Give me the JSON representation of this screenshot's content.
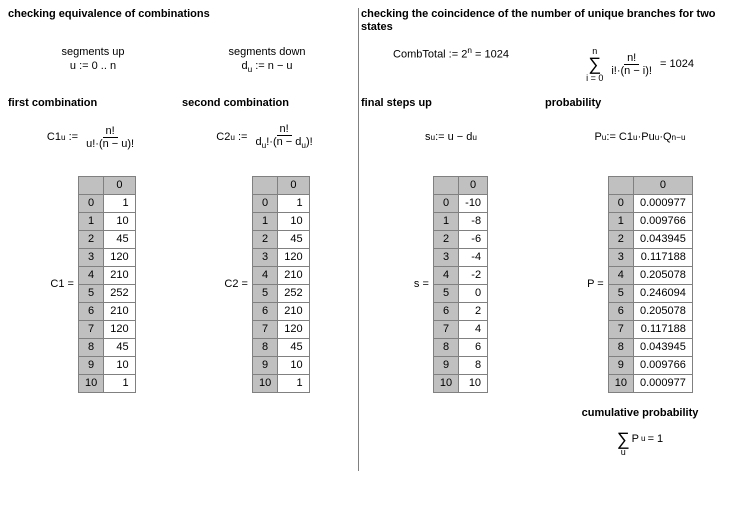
{
  "layout": {
    "headingLeft": "checking equivalence of combinations",
    "headingRight": "checking the coincidence of the number of unique branches for two states"
  },
  "col1": {
    "sub1": "segments up",
    "sub1formula": "u := 0 .. n",
    "sub2": "first combination",
    "formulaLabel": "C1",
    "formulaSub": "u",
    "formulaNum": "n!",
    "formulaDen": "u!·(n − u)!",
    "tableLabel": "C1 =",
    "header": "0",
    "rows": [
      {
        "i": "0",
        "v": "1"
      },
      {
        "i": "1",
        "v": "10"
      },
      {
        "i": "2",
        "v": "45"
      },
      {
        "i": "3",
        "v": "120"
      },
      {
        "i": "4",
        "v": "210"
      },
      {
        "i": "5",
        "v": "252"
      },
      {
        "i": "6",
        "v": "210"
      },
      {
        "i": "7",
        "v": "120"
      },
      {
        "i": "8",
        "v": "45"
      },
      {
        "i": "9",
        "v": "10"
      },
      {
        "i": "10",
        "v": "1"
      }
    ]
  },
  "col2": {
    "sub1": "segments down",
    "sub1formulaLeft": "d",
    "sub1formulaSub": "u",
    "sub1formulaRight": " := n − u",
    "sub2": "second combination",
    "formulaLabel": "C2",
    "formulaSub": "u",
    "formulaNum": "n!",
    "formulaDenLeft": "d",
    "formulaDenMid": "!·(n − d",
    "formulaDenRight": ")!",
    "tableLabel": "C2 =",
    "header": "0",
    "rows": [
      {
        "i": "0",
        "v": "1"
      },
      {
        "i": "1",
        "v": "10"
      },
      {
        "i": "2",
        "v": "45"
      },
      {
        "i": "3",
        "v": "120"
      },
      {
        "i": "4",
        "v": "210"
      },
      {
        "i": "5",
        "v": "252"
      },
      {
        "i": "6",
        "v": "210"
      },
      {
        "i": "7",
        "v": "120"
      },
      {
        "i": "8",
        "v": "45"
      },
      {
        "i": "9",
        "v": "10"
      },
      {
        "i": "10",
        "v": "1"
      }
    ]
  },
  "col3": {
    "topLeft": "CombTotal := 2",
    "topExp": "n",
    "topRight": " = 1024",
    "sumTop": "n",
    "sumBottom": "i = 0",
    "sumNum": "n!",
    "sumDen": "i!·(n − i)!",
    "sumResult": " = 1024",
    "sub2": "final steps up",
    "formulaLeft": "s",
    "formulaSub": "u",
    "formulaMid": " := u − d",
    "tableLabel": "s =",
    "header": "0",
    "rows": [
      {
        "i": "0",
        "v": "-10"
      },
      {
        "i": "1",
        "v": "-8"
      },
      {
        "i": "2",
        "v": "-6"
      },
      {
        "i": "3",
        "v": "-4"
      },
      {
        "i": "4",
        "v": "-2"
      },
      {
        "i": "5",
        "v": "0"
      },
      {
        "i": "6",
        "v": "2"
      },
      {
        "i": "7",
        "v": "4"
      },
      {
        "i": "8",
        "v": "6"
      },
      {
        "i": "9",
        "v": "8"
      },
      {
        "i": "10",
        "v": "10"
      }
    ]
  },
  "col4": {
    "sub2": "probability",
    "formulaP": "P",
    "formulaSub": "u",
    "formulaAssign": " := C1",
    "formulaPu": "·Pu",
    "formulaExpU": "u",
    "formulaQ": "·Q",
    "formulaExpNU": "n−u",
    "tableLabel": "P =",
    "header": "0",
    "rows": [
      {
        "i": "0",
        "v": "0.000977"
      },
      {
        "i": "1",
        "v": "0.009766"
      },
      {
        "i": "2",
        "v": "0.043945"
      },
      {
        "i": "3",
        "v": "0.117188"
      },
      {
        "i": "4",
        "v": "0.205078"
      },
      {
        "i": "5",
        "v": "0.246094"
      },
      {
        "i": "6",
        "v": "0.205078"
      },
      {
        "i": "7",
        "v": "0.117188"
      },
      {
        "i": "8",
        "v": "0.043945"
      },
      {
        "i": "9",
        "v": "0.009766"
      },
      {
        "i": "10",
        "v": "0.000977"
      }
    ],
    "cumHeading": "cumulative probability",
    "cumSub": "u",
    "cumLabel": "P",
    "cumResult": " = 1"
  }
}
